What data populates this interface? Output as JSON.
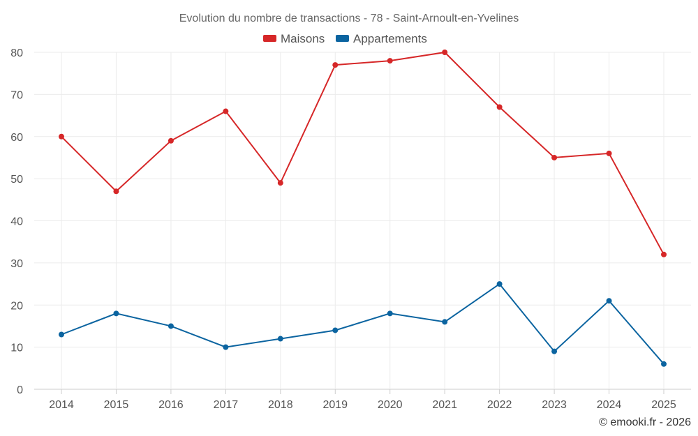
{
  "chart_data": {
    "type": "line",
    "title": "Evolution du nombre de transactions - 78 - Saint-Arnoult-en-Yvelines",
    "categories": [
      "2014",
      "2015",
      "2016",
      "2017",
      "2018",
      "2019",
      "2020",
      "2021",
      "2022",
      "2023",
      "2024",
      "2025"
    ],
    "series": [
      {
        "name": "Maisons",
        "color": "#d62728",
        "values": [
          60,
          47,
          59,
          66,
          49,
          77,
          78,
          80,
          67,
          55,
          56,
          32
        ]
      },
      {
        "name": "Appartements",
        "color": "#0b64a0",
        "values": [
          13,
          18,
          15,
          10,
          12,
          14,
          18,
          16,
          25,
          9,
          21,
          6
        ]
      }
    ],
    "ylim": [
      0,
      80
    ],
    "yticks": [
      "0",
      "10",
      "20",
      "30",
      "40",
      "50",
      "60",
      "70",
      "80"
    ],
    "xlabel": "",
    "ylabel": "",
    "grid": true,
    "legend": "top-center"
  },
  "credit": "© emooki.fr - 2026"
}
